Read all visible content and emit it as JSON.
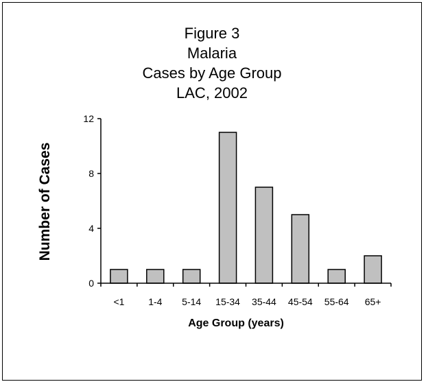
{
  "chart_data": {
    "type": "bar",
    "title": [
      "Figure 3",
      "Malaria",
      "Cases by Age Group",
      "LAC, 2002"
    ],
    "xlabel": "Age Group (years)",
    "ylabel": "Number of Cases",
    "categories": [
      "<1",
      "1-4",
      "5-14",
      "15-34",
      "35-44",
      "45-54",
      "55-64",
      "65+"
    ],
    "values": [
      1,
      1,
      1,
      11,
      7,
      5,
      1,
      2
    ],
    "ylim": [
      0,
      12
    ],
    "yticks": [
      0,
      4,
      8,
      12
    ],
    "grid": false,
    "legend": "none",
    "colors": {
      "bar_fill": "#c0c0c0",
      "bar_stroke": "#000000",
      "axis": "#000000"
    }
  }
}
